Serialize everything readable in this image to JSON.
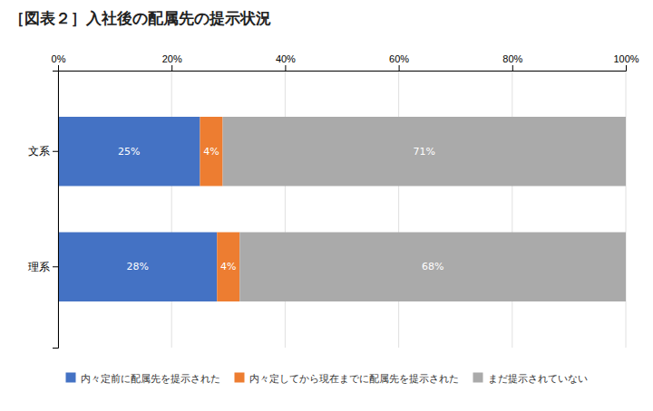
{
  "chart_data": {
    "type": "bar",
    "orientation": "horizontal",
    "stacked": true,
    "title": "［図表２］入社後の配属先の提示状況",
    "categories": [
      "文系",
      "理系"
    ],
    "series": [
      {
        "name": "内々定前に配属先を提示された",
        "color": "#4472C4",
        "values": [
          25,
          28
        ],
        "value_labels": [
          "25%",
          "28%"
        ]
      },
      {
        "name": "内々定してから現在までに配属先を提示された",
        "color": "#ED7D31",
        "values": [
          4,
          4
        ],
        "value_labels": [
          "4%",
          "4%"
        ]
      },
      {
        "name": "まだ提示されていない",
        "color": "#AAAAAA",
        "values": [
          71,
          68
        ],
        "value_labels": [
          "71%",
          "68%"
        ]
      }
    ],
    "xlim": [
      0,
      100
    ],
    "xticks": [
      {
        "value": 0,
        "label": "0%"
      },
      {
        "value": 20,
        "label": "20%"
      },
      {
        "value": 40,
        "label": "40%"
      },
      {
        "value": 60,
        "label": "60%"
      },
      {
        "value": 80,
        "label": "80%"
      },
      {
        "value": 100,
        "label": "100%"
      }
    ],
    "grid": true,
    "legend": "bottom",
    "data_labels": true
  }
}
